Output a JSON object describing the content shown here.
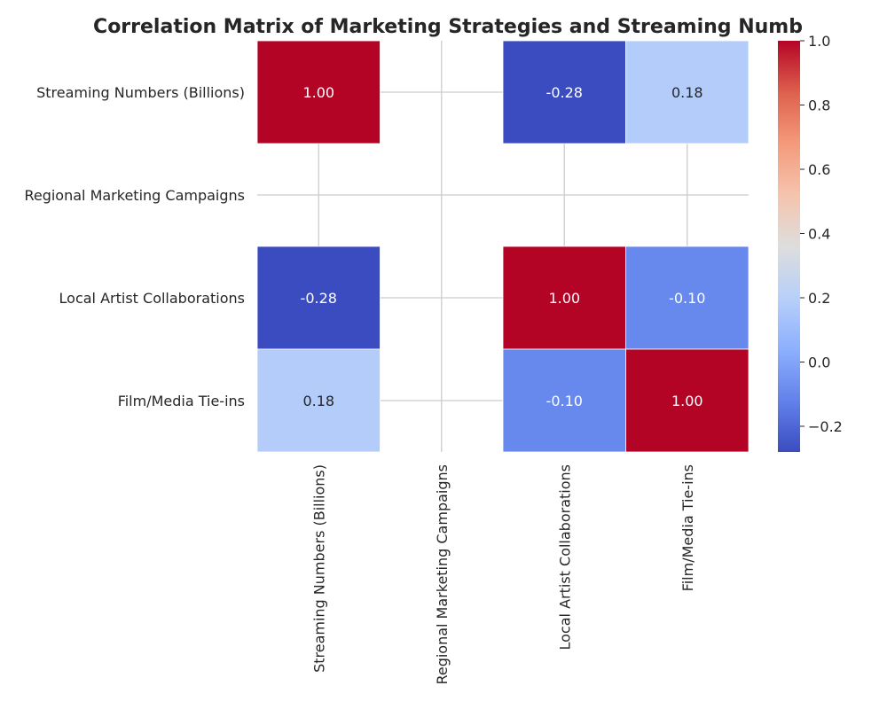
{
  "chart_data": {
    "type": "heatmap",
    "title": "Correlation Matrix of Marketing Strategies and Streaming Numb",
    "row_labels": [
      "Streaming Numbers (Billions)",
      "Regional Marketing Campaigns",
      "Local Artist Collaborations",
      "Film/Media Tie-ins"
    ],
    "col_labels": [
      "Streaming Numbers (Billions)",
      "Regional Marketing Campaigns",
      "Local Artist Collaborations",
      "Film/Media Tie-ins"
    ],
    "values": [
      [
        1.0,
        null,
        -0.28,
        0.18
      ],
      [
        null,
        null,
        null,
        null
      ],
      [
        -0.28,
        null,
        1.0,
        -0.1
      ],
      [
        0.18,
        null,
        -0.1,
        1.0
      ]
    ],
    "value_format": "0.00",
    "colormap": "coolwarm",
    "vmin": -0.28,
    "vmax": 1.0,
    "colorbar_ticks": [
      "1.0",
      "0.8",
      "0.6",
      "0.4",
      "0.2",
      "0.0",
      "−0.2"
    ],
    "colorbar_tick_values": [
      1.0,
      0.8,
      0.6,
      0.4,
      0.2,
      0.0,
      -0.2
    ],
    "grid": true,
    "legend": "colorbar-right"
  }
}
